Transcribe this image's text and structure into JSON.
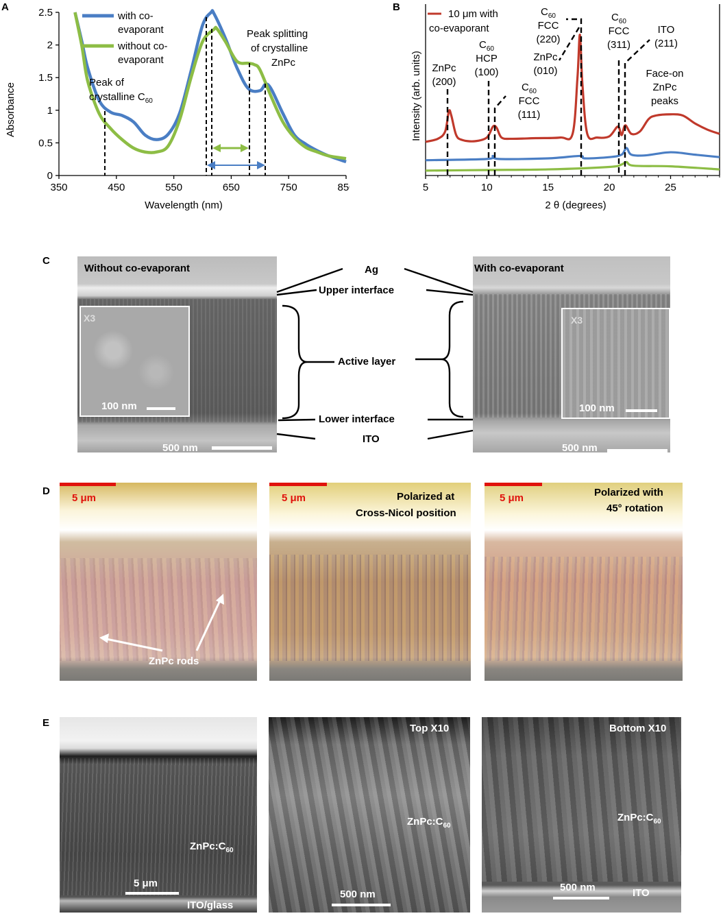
{
  "panels": {
    "A": "A",
    "B": "B",
    "C": "C",
    "D": "D",
    "E": "E"
  },
  "panelA": {
    "ylabel": "Absorbance",
    "xlabel": "Wavelength (nm)",
    "xticks": [
      "350",
      "450",
      "550",
      "650",
      "750",
      "850"
    ],
    "yticks": [
      "0",
      "0.5",
      "1",
      "1.5",
      "2",
      "2.5"
    ],
    "legend": [
      {
        "l1": "with co-",
        "l2": "evaporant",
        "color": "#4a7ec4"
      },
      {
        "l1": "without co-",
        "l2": "evaporant",
        "color": "#8dbd45"
      }
    ],
    "ann_c60": {
      "l1": "Peak of",
      "l2": "crystalline C",
      "sub": "60"
    },
    "ann_split": {
      "l1": "Peak splitting",
      "l2": "of crystalline",
      "l3": "ZnPc"
    }
  },
  "panelB": {
    "ylabel": "Intensity (arb. units)",
    "xlabel": "2 θ (degrees)",
    "xticks": [
      "5",
      "10",
      "15",
      "20",
      "25"
    ],
    "legend": {
      "l1": "10 μm with",
      "l2": "co-evaporant",
      "color": "#c0392b"
    },
    "peaks": {
      "zn200": {
        "l1": "ZnPc",
        "l2": "(200)"
      },
      "hcp": {
        "l1": "C",
        "sub": "60",
        "l2": "HCP",
        "l3": "(100)"
      },
      "f111": {
        "l1": "C",
        "sub": "60",
        "l2": "FCC",
        "l3": "(111)"
      },
      "f220": {
        "l1": "C",
        "sub": "60",
        "l2": "FCC",
        "l3": "(220)"
      },
      "zn010": {
        "l1": "ZnPc",
        "l2": "(010)"
      },
      "f311": {
        "l1": "C",
        "sub": "60",
        "l2": "FCC",
        "l3": "(311)"
      },
      "ito": {
        "l1": "ITO",
        "l2": "(211)"
      },
      "faceon": {
        "l1": "Face-on",
        "l2": "ZnPc",
        "l3": "peaks"
      }
    }
  },
  "panelC": {
    "left_title": "Without co-evaporant",
    "right_title": "With co-evaporant",
    "inset": "X3",
    "inset_scale": "100 nm",
    "scale": "500 nm",
    "labels": [
      "Ag",
      "Upper interface",
      "Active layer",
      "Lower interface",
      "ITO"
    ]
  },
  "panelD": {
    "scale": "5 μm",
    "rods": "ZnPc rods",
    "mid_l1": "Polarized at",
    "mid_l2": "Cross-Nicol position",
    "right_l1": "Polarized with",
    "right_l2": "45° rotation"
  },
  "panelE": {
    "compound": "ZnPc:C",
    "sub": "60",
    "scale1": "5 μm",
    "substrate": "ITO/glass",
    "top": "Top X10",
    "bottom": "Bottom X10",
    "scale2": "500 nm",
    "ito": "ITO"
  },
  "chart_data": [
    {
      "type": "line",
      "xlabel": "Wavelength (nm)",
      "ylabel": "Absorbance",
      "xlim": [
        350,
        850
      ],
      "ylim": [
        0,
        2.5
      ],
      "grid": false,
      "legend": "top-left",
      "series": [
        {
          "name": "with co-evaporant",
          "color": "#4a7ec4",
          "x": [
            378,
            390,
            400,
            420,
            440,
            460,
            480,
            500,
            520,
            540,
            560,
            580,
            600,
            615,
            620,
            640,
            660,
            680,
            700,
            710,
            720,
            740,
            760,
            780,
            800,
            820,
            850
          ],
          "y": [
            2.5,
            2.05,
            1.65,
            1.15,
            0.97,
            0.92,
            0.82,
            0.62,
            0.55,
            0.63,
            0.95,
            1.6,
            2.3,
            2.5,
            2.48,
            2.1,
            1.65,
            1.33,
            1.3,
            1.4,
            1.32,
            0.95,
            0.62,
            0.48,
            0.38,
            0.3,
            0.21
          ]
        },
        {
          "name": "without co-evaporant",
          "color": "#8dbd45",
          "x": [
            378,
            390,
            400,
            420,
            440,
            460,
            480,
            500,
            520,
            540,
            560,
            580,
            600,
            620,
            625,
            640,
            660,
            680,
            690,
            700,
            720,
            740,
            760,
            780,
            800,
            820,
            850
          ],
          "y": [
            2.5,
            1.98,
            1.45,
            0.95,
            0.72,
            0.55,
            0.42,
            0.36,
            0.36,
            0.45,
            0.85,
            1.5,
            2.05,
            2.24,
            2.25,
            2.05,
            1.75,
            1.72,
            1.7,
            1.62,
            1.2,
            0.82,
            0.58,
            0.43,
            0.36,
            0.3,
            0.26
          ]
        }
      ]
    },
    {
      "type": "line",
      "xlabel": "2 θ (degrees)",
      "ylabel": "Intensity (arb. units)",
      "xlim": [
        5,
        29
      ],
      "grid": false,
      "legend": "top-left",
      "series": [
        {
          "name": "10 μm with co-evaporant",
          "color": "#c0392b",
          "x": [
            5,
            6,
            6.6,
            6.9,
            7.1,
            7.5,
            8,
            9,
            10,
            10.5,
            10.8,
            11.2,
            12,
            14,
            16,
            17,
            17.4,
            17.6,
            17.8,
            18.2,
            19,
            20,
            20.7,
            21,
            21.3,
            21.8,
            22.5,
            23.2,
            23.8,
            25,
            26,
            27,
            28,
            29
          ],
          "y": [
            0.55,
            0.6,
            0.72,
            1.05,
            0.98,
            0.66,
            0.58,
            0.56,
            0.62,
            0.8,
            0.78,
            0.62,
            0.6,
            0.61,
            0.62,
            0.68,
            1.6,
            2.3,
            1.5,
            0.68,
            0.62,
            0.64,
            0.8,
            0.66,
            0.82,
            0.68,
            0.72,
            0.92,
            0.98,
            1.0,
            0.98,
            0.85,
            0.75,
            0.68
          ]
        },
        {
          "name": "",
          "color": "#4a7ec4",
          "x": [
            5,
            10,
            10.5,
            11,
            15,
            17.6,
            18,
            20,
            21,
            21.4,
            21.8,
            23,
            25,
            27,
            29
          ],
          "y": [
            0.25,
            0.27,
            0.32,
            0.27,
            0.28,
            0.32,
            0.28,
            0.3,
            0.34,
            0.45,
            0.34,
            0.33,
            0.38,
            0.34,
            0.3
          ]
        },
        {
          "name": "",
          "color": "#8dbd45",
          "x": [
            5,
            10,
            15,
            20,
            21,
            21.4,
            22,
            25,
            29
          ],
          "y": [
            0.08,
            0.09,
            0.1,
            0.14,
            0.18,
            0.22,
            0.16,
            0.15,
            0.1
          ]
        }
      ]
    }
  ]
}
